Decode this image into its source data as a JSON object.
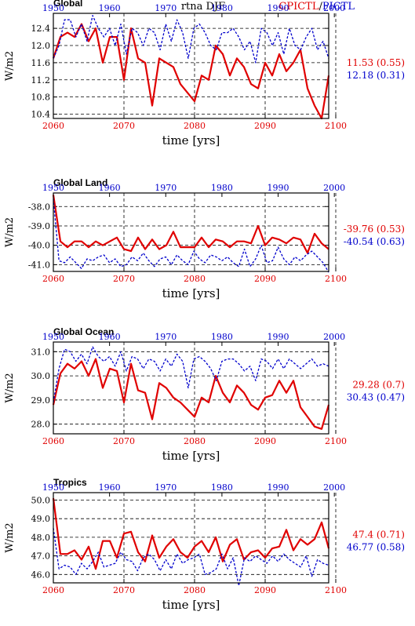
{
  "figure": {
    "center_title": "rtna DJF",
    "legend_red": "CPICTL",
    "legend_sep": "/",
    "legend_blue": "PICTL",
    "colors": {
      "red": "#e00000",
      "blue": "#0000cc",
      "grid": "#000000",
      "frame": "#000000"
    }
  },
  "chart_data": [
    {
      "type": "line",
      "title": "Global",
      "ylabel": "W/m2",
      "xlabel": "time [yrs]",
      "top_ticks": [
        "1950",
        "1960",
        "1970",
        "1980",
        "1990",
        "2000"
      ],
      "bottom_ticks": [
        "2060",
        "2070",
        "2080",
        "2090",
        "2100"
      ],
      "ytick_labels": [
        "12.4",
        "12.0",
        "11.6",
        "11.2",
        "10.8",
        "10.4"
      ],
      "yticks": [
        12.4,
        12.0,
        11.6,
        11.2,
        10.8,
        10.4
      ],
      "ylim": [
        10.3,
        12.75
      ],
      "xlim": [
        2060,
        2099
      ],
      "grid": true,
      "series": [
        {
          "name": "CPICTL",
          "color": "#e00000",
          "x": [
            2060,
            2061,
            2062,
            2063,
            2064,
            2065,
            2066,
            2067,
            2068,
            2069,
            2070,
            2071,
            2072,
            2073,
            2074,
            2075,
            2076,
            2077,
            2078,
            2079,
            2080,
            2081,
            2082,
            2083,
            2084,
            2085,
            2086,
            2087,
            2088,
            2089,
            2090,
            2091,
            2092,
            2093,
            2094,
            2095,
            2096,
            2097,
            2098,
            2099
          ],
          "values": [
            11.7,
            12.2,
            12.3,
            12.2,
            12.5,
            12.1,
            12.4,
            11.6,
            12.2,
            12.2,
            11.2,
            12.4,
            11.7,
            11.6,
            10.6,
            11.7,
            11.6,
            11.5,
            11.1,
            10.9,
            10.7,
            11.3,
            11.2,
            12.0,
            11.8,
            11.3,
            11.7,
            11.5,
            11.1,
            11.0,
            11.6,
            11.3,
            11.8,
            11.4,
            11.6,
            11.9,
            11.0,
            10.6,
            10.3,
            11.3
          ],
          "summary": "11.53 (0.55)"
        },
        {
          "name": "PICTL",
          "color": "#0000cc",
          "x": [
            1950,
            1951,
            1952,
            1953,
            1954,
            1955,
            1956,
            1957,
            1958,
            1959,
            1960,
            1961,
            1962,
            1963,
            1964,
            1965,
            1966,
            1967,
            1968,
            1969,
            1970,
            1971,
            1972,
            1973,
            1974,
            1975,
            1976,
            1977,
            1978,
            1979,
            1980,
            1981,
            1982,
            1983,
            1984,
            1985,
            1986,
            1987,
            1988,
            1989,
            1990,
            1991,
            1992,
            1993,
            1994,
            1995,
            1996,
            1997,
            1998,
            1999
          ],
          "values": [
            11.7,
            12.0,
            12.6,
            12.6,
            12.2,
            12.5,
            12.1,
            12.7,
            12.4,
            12.2,
            12.4,
            12.0,
            12.5,
            11.8,
            12.4,
            12.3,
            12.0,
            12.4,
            12.3,
            11.9,
            12.5,
            12.1,
            12.6,
            12.3,
            11.7,
            12.4,
            12.5,
            12.3,
            12.0,
            11.9,
            12.3,
            12.3,
            12.4,
            12.2,
            11.9,
            12.1,
            11.6,
            12.4,
            12.3,
            12.0,
            12.3,
            11.8,
            12.4,
            12.0,
            11.9,
            12.2,
            12.4,
            11.9,
            12.1,
            11.7
          ],
          "summary": "12.18 (0.31)"
        }
      ]
    },
    {
      "type": "line",
      "title": "Global Land",
      "ylabel": "W/m2",
      "xlabel": "time [yrs]",
      "top_ticks": [
        "1950",
        "1960",
        "1970",
        "1980",
        "1990",
        "2000"
      ],
      "bottom_ticks": [
        "2060",
        "2070",
        "2080",
        "2090",
        "2100"
      ],
      "ytick_labels": [
        "-38.0",
        "-39.0",
        "-40.0",
        "-41.0"
      ],
      "yticks": [
        -38.0,
        -39.0,
        -40.0,
        -41.0
      ],
      "ylim": [
        -41.35,
        -37.3
      ],
      "xlim": [
        2060,
        2099
      ],
      "grid": true,
      "series": [
        {
          "name": "CPICTL",
          "color": "#e00000",
          "x": [
            2060,
            2061,
            2062,
            2063,
            2064,
            2065,
            2066,
            2067,
            2068,
            2069,
            2070,
            2071,
            2072,
            2073,
            2074,
            2075,
            2076,
            2077,
            2078,
            2079,
            2080,
            2081,
            2082,
            2083,
            2084,
            2085,
            2086,
            2087,
            2088,
            2089,
            2090,
            2091,
            2092,
            2093,
            2094,
            2095,
            2096,
            2097,
            2098,
            2099
          ],
          "values": [
            -37.4,
            -39.8,
            -40.1,
            -39.8,
            -39.8,
            -40.1,
            -39.8,
            -40.0,
            -39.8,
            -39.6,
            -40.2,
            -40.3,
            -39.6,
            -40.2,
            -39.7,
            -40.2,
            -40.0,
            -39.3,
            -40.1,
            -40.1,
            -40.1,
            -39.6,
            -40.1,
            -39.7,
            -39.8,
            -40.1,
            -39.8,
            -39.8,
            -39.9,
            -39.0,
            -40.0,
            -39.6,
            -39.7,
            -39.9,
            -39.6,
            -39.7,
            -40.4,
            -39.4,
            -39.9,
            -40.2
          ],
          "summary": "-39.76 (0.53)"
        },
        {
          "name": "PICTL",
          "color": "#0000cc",
          "x": [
            1950,
            1951,
            1952,
            1953,
            1954,
            1955,
            1956,
            1957,
            1958,
            1959,
            1960,
            1961,
            1962,
            1963,
            1964,
            1965,
            1966,
            1967,
            1968,
            1969,
            1970,
            1971,
            1972,
            1973,
            1974,
            1975,
            1976,
            1977,
            1978,
            1979,
            1980,
            1981,
            1982,
            1983,
            1984,
            1985,
            1986,
            1987,
            1988,
            1989,
            1990,
            1991,
            1992,
            1993,
            1994,
            1995,
            1996,
            1997,
            1998,
            1999
          ],
          "values": [
            -37.6,
            -40.8,
            -40.9,
            -40.6,
            -40.9,
            -41.2,
            -40.7,
            -40.8,
            -40.6,
            -40.5,
            -40.9,
            -40.7,
            -41.1,
            -41.0,
            -40.6,
            -40.8,
            -40.4,
            -40.8,
            -41.1,
            -40.7,
            -40.6,
            -41.0,
            -40.5,
            -40.8,
            -41.0,
            -40.3,
            -40.7,
            -40.9,
            -40.5,
            -40.6,
            -40.8,
            -40.6,
            -40.9,
            -41.1,
            -40.2,
            -41.1,
            -40.7,
            -40.0,
            -40.9,
            -40.8,
            -40.1,
            -40.7,
            -41.0,
            -40.6,
            -40.8,
            -40.5,
            -40.3,
            -40.6,
            -40.9,
            -41.4
          ],
          "summary": "-40.54 (0.63)"
        }
      ]
    },
    {
      "type": "line",
      "title": "Global Ocean",
      "ylabel": "W/m2",
      "xlabel": "time [yrs]",
      "top_ticks": [
        "1950",
        "1960",
        "1970",
        "1980",
        "1990",
        "2000"
      ],
      "bottom_ticks": [
        "2060",
        "2070",
        "2080",
        "2090",
        "2100"
      ],
      "ytick_labels": [
        "31.0",
        "30.0",
        "29.0",
        "28.0"
      ],
      "yticks": [
        31.0,
        30.0,
        29.0,
        28.0
      ],
      "ylim": [
        27.6,
        31.4
      ],
      "xlim": [
        2060,
        2099
      ],
      "grid": true,
      "series": [
        {
          "name": "CPICTL",
          "color": "#e00000",
          "x": [
            2060,
            2061,
            2062,
            2063,
            2064,
            2065,
            2066,
            2067,
            2068,
            2069,
            2070,
            2071,
            2072,
            2073,
            2074,
            2075,
            2076,
            2077,
            2078,
            2079,
            2080,
            2081,
            2082,
            2083,
            2084,
            2085,
            2086,
            2087,
            2088,
            2089,
            2090,
            2091,
            2092,
            2093,
            2094,
            2095,
            2096,
            2097,
            2098,
            2099
          ],
          "values": [
            28.8,
            30.1,
            30.5,
            30.3,
            30.6,
            30.0,
            30.7,
            29.5,
            30.3,
            30.2,
            28.9,
            30.5,
            29.4,
            29.3,
            28.2,
            29.7,
            29.5,
            29.1,
            28.9,
            28.6,
            28.3,
            29.1,
            28.9,
            30.0,
            29.3,
            28.9,
            29.6,
            29.3,
            28.8,
            28.6,
            29.1,
            29.2,
            29.8,
            29.3,
            29.8,
            28.7,
            28.3,
            27.9,
            27.8,
            28.8
          ],
          "summary": "29.28 (0.7)"
        },
        {
          "name": "PICTL",
          "color": "#0000cc",
          "x": [
            1950,
            1951,
            1952,
            1953,
            1954,
            1955,
            1956,
            1957,
            1958,
            1959,
            1960,
            1961,
            1962,
            1963,
            1964,
            1965,
            1966,
            1967,
            1968,
            1969,
            1970,
            1971,
            1972,
            1973,
            1974,
            1975,
            1976,
            1977,
            1978,
            1979,
            1980,
            1981,
            1982,
            1983,
            1984,
            1985,
            1986,
            1987,
            1988,
            1989,
            1990,
            1991,
            1992,
            1993,
            1994,
            1995,
            1996,
            1997,
            1998,
            1999
          ],
          "values": [
            28.9,
            30.3,
            31.1,
            31.0,
            30.6,
            30.9,
            30.5,
            31.2,
            30.8,
            30.6,
            30.8,
            30.4,
            31.0,
            30.2,
            30.8,
            30.7,
            30.3,
            30.7,
            30.6,
            30.2,
            30.7,
            30.4,
            30.9,
            30.6,
            29.5,
            30.7,
            30.8,
            30.6,
            30.3,
            29.8,
            30.6,
            30.7,
            30.7,
            30.5,
            30.2,
            30.4,
            29.8,
            30.7,
            30.6,
            30.3,
            30.7,
            30.3,
            30.7,
            30.5,
            30.3,
            30.5,
            30.7,
            30.4,
            30.5,
            30.4
          ],
          "summary": "30.43 (0.47)"
        }
      ]
    },
    {
      "type": "line",
      "title": "Tropics",
      "ylabel": "W/m2",
      "xlabel": "time [yrs]",
      "top_ticks": [
        "1950",
        "1960",
        "1970",
        "1980",
        "1990",
        "2000"
      ],
      "bottom_ticks": [
        "2060",
        "2070",
        "2080",
        "2090",
        "2100"
      ],
      "ytick_labels": [
        "50.0",
        "49.0",
        "48.0",
        "47.0",
        "46.0"
      ],
      "yticks": [
        50.0,
        49.0,
        48.0,
        47.0,
        46.0
      ],
      "ylim": [
        45.55,
        50.4
      ],
      "xlim": [
        2060,
        2099
      ],
      "grid": true,
      "series": [
        {
          "name": "CPICTL",
          "color": "#e00000",
          "x": [
            2060,
            2061,
            2062,
            2063,
            2064,
            2065,
            2066,
            2067,
            2068,
            2069,
            2070,
            2071,
            2072,
            2073,
            2074,
            2075,
            2076,
            2077,
            2078,
            2079,
            2080,
            2081,
            2082,
            2083,
            2084,
            2085,
            2086,
            2087,
            2088,
            2089,
            2090,
            2091,
            2092,
            2093,
            2094,
            2095,
            2096,
            2097,
            2098,
            2099
          ],
          "values": [
            50.1,
            47.1,
            47.1,
            47.3,
            46.8,
            47.5,
            46.3,
            47.8,
            47.8,
            46.9,
            48.2,
            48.3,
            47.2,
            46.7,
            48.1,
            46.9,
            47.5,
            47.9,
            47.2,
            46.9,
            47.5,
            47.8,
            47.2,
            48.0,
            46.7,
            47.6,
            47.9,
            46.8,
            47.2,
            47.3,
            46.9,
            47.4,
            47.5,
            48.4,
            47.3,
            47.9,
            47.6,
            47.9,
            48.8,
            47.4
          ],
          "summary": "47.4 (0.71)"
        },
        {
          "name": "PICTL",
          "color": "#0000cc",
          "x": [
            1950,
            1951,
            1952,
            1953,
            1954,
            1955,
            1956,
            1957,
            1958,
            1959,
            1960,
            1961,
            1962,
            1963,
            1964,
            1965,
            1966,
            1967,
            1968,
            1969,
            1970,
            1971,
            1972,
            1973,
            1974,
            1975,
            1976,
            1977,
            1978,
            1979,
            1980,
            1981,
            1982,
            1983,
            1984,
            1985,
            1986,
            1987,
            1988,
            1989,
            1990,
            1991,
            1992,
            1993,
            1994,
            1995,
            1996,
            1997,
            1998,
            1999
          ],
          "values": [
            48.5,
            46.3,
            46.5,
            46.4,
            46.0,
            46.6,
            46.3,
            46.7,
            47.2,
            46.4,
            46.5,
            46.6,
            47.2,
            46.8,
            46.7,
            46.2,
            46.9,
            47.1,
            46.8,
            46.2,
            46.8,
            46.3,
            47.1,
            46.6,
            46.8,
            46.9,
            47.1,
            46.0,
            46.1,
            46.3,
            47.1,
            46.3,
            46.9,
            45.4,
            46.9,
            46.7,
            47.0,
            46.8,
            46.6,
            47.0,
            46.7,
            47.1,
            46.8,
            46.6,
            46.4,
            47.0,
            45.9,
            46.8,
            46.6,
            46.5
          ],
          "summary": "46.77 (0.58)"
        }
      ]
    }
  ]
}
